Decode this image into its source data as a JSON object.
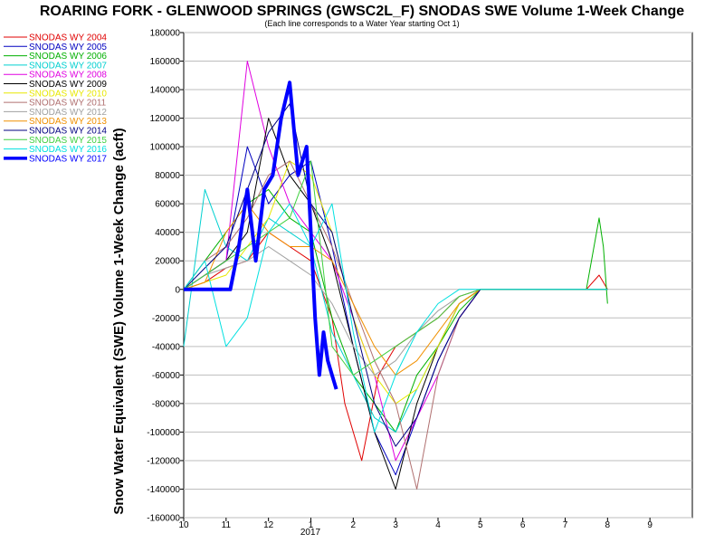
{
  "chart_data": {
    "type": "line",
    "title": "ROARING FORK - GLENWOOD SPRINGS (GWSC2L_F) SNODAS SWE Volume 1-Week Change",
    "subtitle": "(Each line corresponds to a Water Year starting Oct 1)",
    "ylabel": "Snow Water Equivalent (SWE) Volume 1-Week Change (acft)",
    "xlabel": "",
    "x_year_label": "2017",
    "x_tick_labels": [
      "10",
      "11",
      "12",
      "1",
      "2",
      "3",
      "4",
      "5",
      "6",
      "7",
      "8",
      "9"
    ],
    "xlim": [
      0,
      12
    ],
    "ylim": [
      -160000,
      180000
    ],
    "y_ticks": [
      -160000,
      -140000,
      -120000,
      -100000,
      -80000,
      -60000,
      -40000,
      -20000,
      0,
      20000,
      40000,
      60000,
      80000,
      100000,
      120000,
      140000,
      160000,
      180000
    ],
    "grid": true,
    "legend_position": "left",
    "x_units": "months since Oct 1",
    "series": [
      {
        "name": "SNODAS WY 2004",
        "color": "#e00000",
        "width": 1,
        "x": [
          0,
          0.5,
          1,
          1.5,
          2,
          2.5,
          3,
          3.5,
          3.8,
          4.2,
          4.6,
          5,
          5.5,
          6,
          6.5,
          7,
          7.5,
          8,
          9,
          9.5,
          9.8,
          9.9,
          10.0
        ],
        "values": [
          0,
          5000,
          15000,
          20000,
          40000,
          30000,
          20000,
          -20000,
          -80000,
          -120000,
          -60000,
          -40000,
          -30000,
          -20000,
          -5000,
          0,
          0,
          0,
          0,
          0,
          10000,
          5000,
          0
        ]
      },
      {
        "name": "SNODAS WY 2005",
        "color": "#0000c0",
        "width": 1,
        "x": [
          0,
          0.5,
          1,
          1.5,
          2,
          2.5,
          3,
          3.5,
          4,
          4.5,
          5,
          5.5,
          6,
          6.5,
          7,
          7.5,
          8,
          9,
          10
        ],
        "values": [
          0,
          10000,
          20000,
          100000,
          60000,
          80000,
          90000,
          30000,
          -40000,
          -100000,
          -130000,
          -90000,
          -50000,
          -20000,
          0,
          0,
          0,
          0,
          0
        ]
      },
      {
        "name": "SNODAS WY 2006",
        "color": "#00b000",
        "width": 1,
        "x": [
          0,
          0.5,
          1,
          1.5,
          2,
          2.5,
          3,
          3.5,
          4,
          4.5,
          5,
          5.5,
          6,
          6.5,
          7,
          7.5,
          8,
          9,
          9.5,
          9.8,
          9.9,
          10.0
        ],
        "values": [
          0,
          20000,
          40000,
          60000,
          70000,
          50000,
          40000,
          -20000,
          -60000,
          -80000,
          -100000,
          -60000,
          -40000,
          -15000,
          0,
          0,
          0,
          0,
          0,
          50000,
          30000,
          -10000
        ]
      },
      {
        "name": "SNODAS WY 2007",
        "color": "#00d0d0",
        "width": 1,
        "x": [
          0,
          0.5,
          1,
          1.5,
          2,
          2.5,
          3,
          3.5,
          4,
          4.5,
          5,
          5.5,
          6,
          6.5,
          7,
          7.5,
          8,
          9,
          10
        ],
        "values": [
          -40000,
          70000,
          30000,
          20000,
          50000,
          40000,
          30000,
          -30000,
          -60000,
          -90000,
          -100000,
          -70000,
          -40000,
          -10000,
          0,
          0,
          0,
          0,
          0
        ]
      },
      {
        "name": "SNODAS WY 2008",
        "color": "#e000e0",
        "width": 1,
        "x": [
          0,
          0.5,
          1,
          1.5,
          2,
          2.5,
          3,
          3.5,
          4,
          4.5,
          5,
          5.5,
          6,
          6.5,
          7,
          7.5,
          8,
          9,
          10
        ],
        "values": [
          0,
          10000,
          20000,
          160000,
          100000,
          60000,
          40000,
          20000,
          -20000,
          -60000,
          -120000,
          -90000,
          -60000,
          -20000,
          0,
          0,
          0,
          0,
          0
        ]
      },
      {
        "name": "SNODAS WY 2009",
        "color": "#000000",
        "width": 1,
        "x": [
          0,
          0.5,
          1,
          1.5,
          2,
          2.5,
          3,
          3.5,
          4,
          4.5,
          5,
          5.5,
          6,
          6.5,
          7,
          7.5,
          8,
          9,
          10
        ],
        "values": [
          0,
          10000,
          20000,
          40000,
          120000,
          80000,
          60000,
          20000,
          -40000,
          -100000,
          -140000,
          -80000,
          -40000,
          -10000,
          0,
          0,
          0,
          0,
          0
        ]
      },
      {
        "name": "SNODAS WY 2010",
        "color": "#e8e800",
        "width": 1,
        "x": [
          0,
          0.5,
          1,
          1.5,
          2,
          2.5,
          3,
          3.5,
          4,
          4.5,
          5,
          5.5,
          6,
          6.5,
          7,
          7.5,
          8,
          9,
          10
        ],
        "values": [
          0,
          5000,
          10000,
          30000,
          50000,
          90000,
          80000,
          40000,
          -20000,
          -60000,
          -80000,
          -70000,
          -40000,
          -10000,
          0,
          0,
          0,
          0,
          0
        ]
      },
      {
        "name": "SNODAS WY 2011",
        "color": "#b07070",
        "width": 1,
        "x": [
          0,
          0.5,
          1,
          1.5,
          2,
          2.5,
          3,
          3.5,
          4,
          4.5,
          5,
          5.5,
          6,
          6.5,
          7,
          7.5,
          8,
          9,
          10
        ],
        "values": [
          0,
          20000,
          30000,
          50000,
          80000,
          90000,
          60000,
          30000,
          -10000,
          -50000,
          -80000,
          -140000,
          -60000,
          -20000,
          0,
          0,
          0,
          0,
          0
        ]
      },
      {
        "name": "SNODAS WY 2012",
        "color": "#a0a0a0",
        "width": 1,
        "x": [
          0,
          0.5,
          1,
          1.5,
          2,
          2.5,
          3,
          3.5,
          4,
          4.5,
          5,
          5.5,
          6,
          6.5,
          7,
          7.5,
          8,
          9,
          10
        ],
        "values": [
          0,
          10000,
          15000,
          20000,
          30000,
          20000,
          10000,
          -10000,
          -40000,
          -60000,
          -50000,
          -30000,
          -15000,
          -5000,
          0,
          0,
          0,
          0,
          0
        ]
      },
      {
        "name": "SNODAS WY 2013",
        "color": "#f09000",
        "width": 1,
        "x": [
          0,
          0.5,
          1,
          1.5,
          2,
          2.5,
          3,
          3.5,
          4,
          4.5,
          5,
          5.5,
          6,
          6.5,
          7,
          7.5,
          8,
          9,
          10
        ],
        "values": [
          0,
          5000,
          40000,
          60000,
          40000,
          30000,
          30000,
          20000,
          -10000,
          -40000,
          -60000,
          -50000,
          -30000,
          -10000,
          0,
          0,
          0,
          0,
          0
        ]
      },
      {
        "name": "SNODAS WY 2014",
        "color": "#000080",
        "width": 1,
        "x": [
          0,
          0.5,
          1,
          1.5,
          2,
          2.5,
          3,
          3.5,
          4,
          4.5,
          5,
          5.5,
          6,
          6.5,
          7,
          7.5,
          8,
          9,
          10
        ],
        "values": [
          0,
          15000,
          30000,
          70000,
          110000,
          130000,
          60000,
          40000,
          -20000,
          -80000,
          -110000,
          -90000,
          -50000,
          -20000,
          0,
          0,
          0,
          0,
          0
        ]
      },
      {
        "name": "SNODAS WY 2015",
        "color": "#40d040",
        "width": 1,
        "x": [
          0,
          0.5,
          1,
          1.5,
          2,
          2.5,
          3,
          3.5,
          4,
          4.5,
          5,
          5.5,
          6,
          6.5,
          7,
          7.5,
          8,
          9,
          10
        ],
        "values": [
          0,
          10000,
          20000,
          30000,
          40000,
          50000,
          90000,
          -40000,
          -60000,
          -50000,
          -40000,
          -30000,
          -20000,
          -5000,
          0,
          0,
          0,
          0,
          0
        ]
      },
      {
        "name": "SNODAS WY 2016",
        "color": "#00e0e0",
        "width": 1,
        "x": [
          0,
          0.5,
          1,
          1.5,
          2,
          2.5,
          3,
          3.5,
          4,
          4.5,
          5,
          5.5,
          6,
          6.5,
          7,
          7.5,
          8,
          9,
          10
        ],
        "values": [
          0,
          20000,
          -40000,
          -20000,
          40000,
          60000,
          30000,
          60000,
          -30000,
          -100000,
          -60000,
          -30000,
          -10000,
          0,
          0,
          0,
          0,
          0,
          0
        ]
      },
      {
        "name": "SNODAS WY 2017",
        "color": "#0000ff",
        "width": 4,
        "x": [
          0,
          0.3,
          0.6,
          0.9,
          1.1,
          1.3,
          1.5,
          1.7,
          1.9,
          2.1,
          2.3,
          2.5,
          2.7,
          2.9,
          3.0,
          3.1,
          3.2,
          3.3,
          3.4,
          3.5,
          3.6
        ],
        "values": [
          0,
          0,
          0,
          0,
          0,
          30000,
          70000,
          20000,
          70000,
          80000,
          120000,
          145000,
          80000,
          100000,
          40000,
          -20000,
          -60000,
          -30000,
          -50000,
          -60000,
          -70000
        ]
      }
    ]
  }
}
